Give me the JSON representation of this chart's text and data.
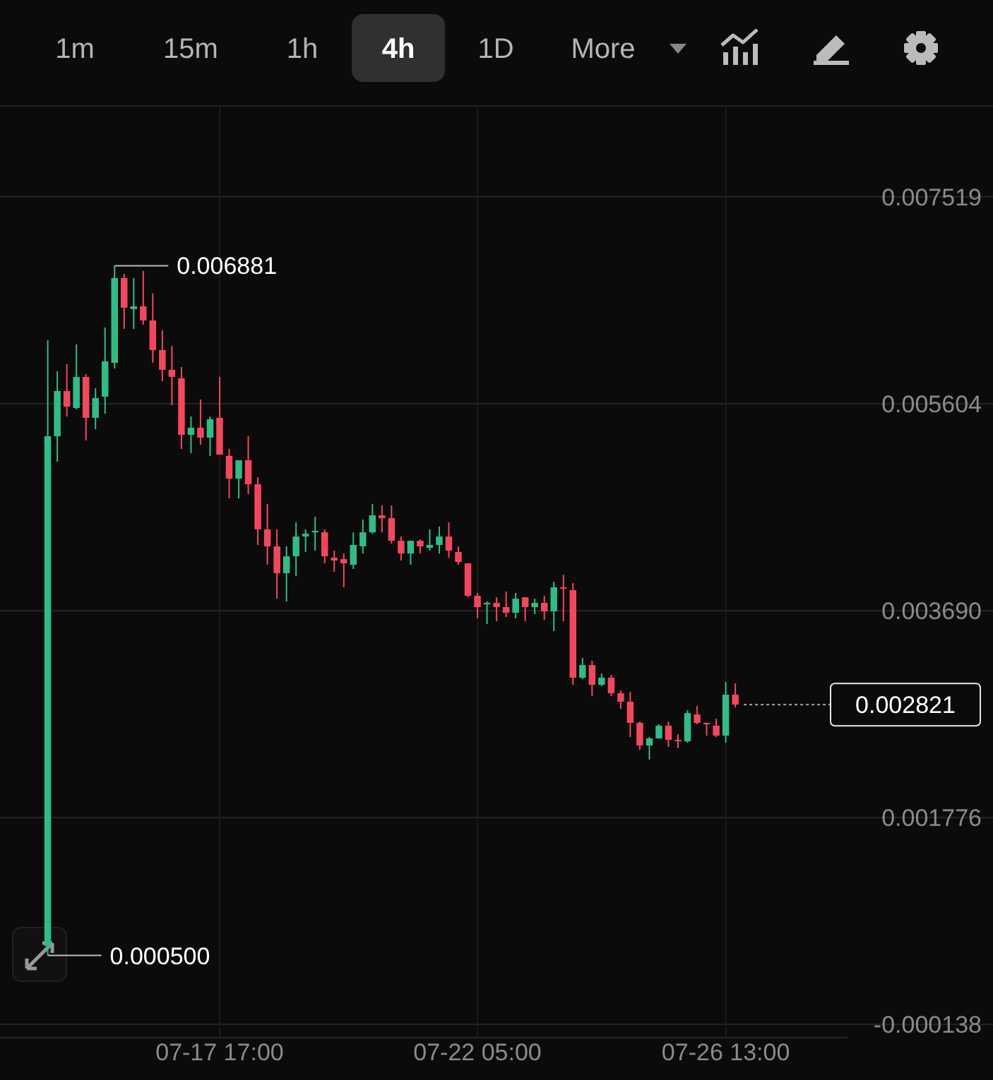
{
  "chart_data": {
    "type": "candlestick",
    "annotations": [
      "1m",
      "15m",
      "1h",
      "4h",
      "1D",
      "More",
      {
        "text": "0.006881",
        "x": "--07-15T21:00",
        "y": 0.006881
      },
      {
        "text": "0.000500",
        "x": "--07-14T17:00",
        "y": 0.0005
      }
    ],
    "x": [
      "--07-14T17:00",
      "--07-14T21:00",
      "--07-15T01:00",
      "--07-15T05:00",
      "--07-15T09:00",
      "--07-15T13:00",
      "--07-15T17:00",
      "--07-15T21:00",
      "--07-16T01:00",
      "--07-16T05:00",
      "--07-16T09:00",
      "--07-16T13:00",
      "--07-16T17:00",
      "--07-16T21:00",
      "--07-17T01:00",
      "--07-17T05:00",
      "--07-17T09:00",
      "--07-17T13:00",
      "--07-17T17:00",
      "--07-17T21:00",
      "--07-18T01:00",
      "--07-18T05:00",
      "--07-18T09:00",
      "--07-18T13:00",
      "--07-18T17:00",
      "--07-18T21:00",
      "--07-19T01:00",
      "--07-19T05:00",
      "--07-19T09:00",
      "--07-19T13:00",
      "--07-19T17:00",
      "--07-19T21:00",
      "--07-20T01:00",
      "--07-20T05:00",
      "--07-20T09:00",
      "--07-20T13:00",
      "--07-20T17:00",
      "--07-20T21:00",
      "--07-21T01:00",
      "--07-21T05:00",
      "--07-21T09:00",
      "--07-21T13:00",
      "--07-21T17:00",
      "--07-21T21:00",
      "--07-22T01:00",
      "--07-22T05:00",
      "--07-22T09:00",
      "--07-22T13:00",
      "--07-22T17:00",
      "--07-22T21:00",
      "--07-23T01:00",
      "--07-23T05:00",
      "--07-23T09:00",
      "--07-23T13:00",
      "--07-23T17:00",
      "--07-23T21:00",
      "--07-24T01:00",
      "--07-24T05:00",
      "--07-24T09:00",
      "--07-24T13:00",
      "--07-24T17:00",
      "--07-24T21:00",
      "--07-25T01:00",
      "--07-25T05:00",
      "--07-25T09:00",
      "--07-25T13:00",
      "--07-25T17:00",
      "--07-25T21:00",
      "--07-26T01:00",
      "--07-26T05:00",
      "--07-26T09:00",
      "--07-26T13:00",
      "--07-26T17:00"
    ],
    "ohlc": [
      [
        0.000587,
        0.006192,
        0.0005,
        0.005304
      ],
      [
        0.005304,
        0.005905,
        0.005069,
        0.005722
      ],
      [
        0.005722,
        0.00597,
        0.005487,
        0.005578
      ],
      [
        0.005565,
        0.006153,
        0.005552,
        0.005853
      ],
      [
        0.005853,
        0.005879,
        0.005265,
        0.005474
      ],
      [
        0.005474,
        0.005748,
        0.005369,
        0.005657
      ],
      [
        0.00567,
        0.00631,
        0.005513,
        0.005996
      ],
      [
        0.005983,
        0.006881,
        0.005931,
        0.006767
      ],
      [
        0.006767,
        0.006806,
        0.006297,
        0.006493
      ],
      [
        0.00648,
        0.006767,
        0.006297,
        0.006506
      ],
      [
        0.006506,
        0.006833,
        0.006336,
        0.006375
      ],
      [
        0.006375,
        0.006624,
        0.005983,
        0.006101
      ],
      [
        0.006101,
        0.006284,
        0.005813,
        0.005918
      ],
      [
        0.005918,
        0.00614,
        0.005591,
        0.005853
      ],
      [
        0.00584,
        0.005944,
        0.005186,
        0.005317
      ],
      [
        0.005317,
        0.005487,
        0.005147,
        0.005382
      ],
      [
        0.005382,
        0.005644,
        0.005226,
        0.005291
      ],
      [
        0.005291,
        0.005487,
        0.005121,
        0.005461
      ],
      [
        0.005474,
        0.005853,
        0.005134,
        0.005134
      ],
      [
        0.005121,
        0.005186,
        0.004729,
        0.004912
      ],
      [
        0.004912,
        0.005082,
        0.004729,
        0.005082
      ],
      [
        0.005082,
        0.005304,
        0.004768,
        0.00486
      ],
      [
        0.00486,
        0.004925,
        0.004298,
        0.004442
      ],
      [
        0.004442,
        0.004677,
        0.004115,
        0.004285
      ],
      [
        0.004285,
        0.004442,
        0.003801,
        0.004037
      ],
      [
        0.004037,
        0.004285,
        0.003775,
        0.004193
      ],
      [
        0.004193,
        0.004507,
        0.00401,
        0.004376
      ],
      [
        0.004376,
        0.004442,
        0.004233,
        0.004402
      ],
      [
        0.004415,
        0.004559,
        0.004246,
        0.004429
      ],
      [
        0.004415,
        0.004442,
        0.004128,
        0.004193
      ],
      [
        0.00418,
        0.004246,
        0.00405,
        0.004154
      ],
      [
        0.004167,
        0.004219,
        0.003906,
        0.004128
      ],
      [
        0.004115,
        0.004415,
        0.004076,
        0.004298
      ],
      [
        0.004285,
        0.004533,
        0.004219,
        0.004415
      ],
      [
        0.004415,
        0.004677,
        0.004402,
        0.004572
      ],
      [
        0.004572,
        0.004664,
        0.004415,
        0.004546
      ],
      [
        0.004546,
        0.004664,
        0.004311,
        0.004337
      ],
      [
        0.004337,
        0.004376,
        0.004154,
        0.004219
      ],
      [
        0.004219,
        0.004337,
        0.004115,
        0.004337
      ],
      [
        0.004337,
        0.00435,
        0.004219,
        0.004285
      ],
      [
        0.004272,
        0.004442,
        0.004246,
        0.004298
      ],
      [
        0.004298,
        0.004468,
        0.004219,
        0.004376
      ],
      [
        0.004376,
        0.004507,
        0.00418,
        0.004246
      ],
      [
        0.004233,
        0.004285,
        0.004115,
        0.004141
      ],
      [
        0.004128,
        0.004128,
        0.003814,
        0.003828
      ],
      [
        0.003828,
        0.003854,
        0.003619,
        0.003723
      ],
      [
        0.003749,
        0.003775,
        0.003566,
        0.003762
      ],
      [
        0.003762,
        0.003814,
        0.003592,
        0.003723
      ],
      [
        0.003723,
        0.003867,
        0.003632,
        0.003671
      ],
      [
        0.003671,
        0.003854,
        0.003619,
        0.003801
      ],
      [
        0.003814,
        0.003814,
        0.003592,
        0.003723
      ],
      [
        0.003723,
        0.003801,
        0.003658,
        0.003762
      ],
      [
        0.003762,
        0.003828,
        0.003606,
        0.003684
      ],
      [
        0.003684,
        0.003958,
        0.003501,
        0.003906
      ],
      [
        0.003906,
        0.004023,
        0.003592,
        0.003893
      ],
      [
        0.00388,
        0.003945,
        0.003004,
        0.00307
      ],
      [
        0.00307,
        0.003253,
        0.003057,
        0.003187
      ],
      [
        0.003187,
        0.003227,
        0.0029,
        0.003004
      ],
      [
        0.003004,
        0.003109,
        0.002991,
        0.00307
      ],
      [
        0.00307,
        0.003096,
        0.0029,
        0.002926
      ],
      [
        0.002926,
        0.002952,
        0.002782,
        0.002848
      ],
      [
        0.002848,
        0.002939,
        0.002521,
        0.002652
      ],
      [
        0.002652,
        0.002665,
        0.002403,
        0.002443
      ],
      [
        0.002443,
        0.002521,
        0.002312,
        0.002508
      ],
      [
        0.002508,
        0.002639,
        0.002508,
        0.002626
      ],
      [
        0.002626,
        0.002665,
        0.00243,
        0.002495
      ],
      [
        0.002495,
        0.002547,
        0.002417,
        0.002482
      ],
      [
        0.002482,
        0.002769,
        0.002469,
        0.002743
      ],
      [
        0.00273,
        0.002809,
        0.002639,
        0.002652
      ],
      [
        0.002652,
        0.002652,
        0.002534,
        0.002639
      ],
      [
        0.002626,
        0.002691,
        0.002521,
        0.002534
      ],
      [
        0.002534,
        0.003031,
        0.002469,
        0.002913
      ],
      [
        0.002913,
        0.003018,
        0.002795,
        0.002821
      ]
    ],
    "xlim": [
      "--07-13T21:00",
      "--07-28T16:00"
    ],
    "xticks": [
      {
        "value": "--07-17T17:00",
        "label": "07-17 17:00"
      },
      {
        "value": "--07-22T05:00",
        "label": "07-22 05:00"
      },
      {
        "value": "--07-26T13:00",
        "label": "07-26 13:00"
      }
    ],
    "ylim": [
      -0.00026,
      0.00836
    ],
    "yticks": [
      {
        "value": 0.007519,
        "label": "0.007519"
      },
      {
        "value": 0.005604,
        "label": "0.005604"
      },
      {
        "value": 0.00369,
        "label": "0.003690"
      },
      {
        "value": 0.001776,
        "label": "0.001776"
      },
      {
        "value": -0.000138,
        "label": "-0.000138"
      }
    ],
    "grid": true,
    "ref_lines": [
      {
        "axis": "y",
        "value": 0.002821,
        "label": "0.002821",
        "line_style": "dotted"
      }
    ]
  }
}
